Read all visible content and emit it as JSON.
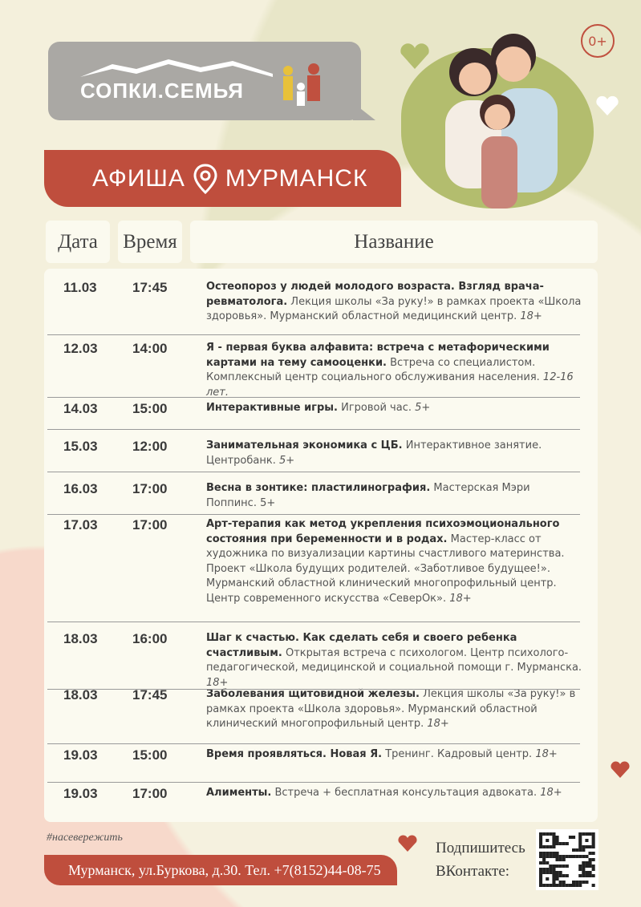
{
  "logo": {
    "text": "СОПКИ.СЕМЬЯ"
  },
  "banner": {
    "left": "АФИША",
    "right": "МУРМАНСК",
    "icon": "location-pin-icon"
  },
  "age_rating": "0+",
  "colors": {
    "accent": "#bf4e3d",
    "logo_bg": "#aaa8a4",
    "green": "#b3bd6e"
  },
  "table": {
    "headers": [
      "Дата",
      "Время",
      "Название"
    ],
    "rows": [
      {
        "date": "11.03",
        "time": "17:45",
        "title": "Остеопороз у людей молодого возраста. Взгляд врача-ревматолога.",
        "desc": " Лекция школы «За руку!» в рамках проекта «Школа здоровья». Мурманский областной медицинский центр. ",
        "age": "18+"
      },
      {
        "date": "12.03",
        "time": "14:00",
        "title": "Я - первая буква алфавита: встреча с метафорическими картами на тему самооценки.",
        "desc": " Встреча со специалистом. Комплексный центр социального обслуживания населения. ",
        "age": "12-16 лет."
      },
      {
        "date": "14.03",
        "time": "15:00",
        "title": "Интерактивные игры.",
        "desc": " Игровой час. ",
        "age": "5+"
      },
      {
        "date": "15.03",
        "time": "12:00",
        "title": "Занимательная экономика с ЦБ.",
        "desc": " Интерактивное занятие. Центробанк. ",
        "age": "5+"
      },
      {
        "date": "16.03",
        "time": "17:00",
        "title": "Весна в зонтике: пластилинография.",
        "desc": " Мастерская Мэри Поппинс. 5+",
        "age": ""
      },
      {
        "date": "17.03",
        "time": "17:00",
        "title": "Арт-терапия как метод укрепления психоэмоционального состояния при беременности и в родах.",
        "desc": " Мастер-класс от художника по визуализации картины счастливого материнства. Проект «Школа будущих родителей. «Заботливое будущее!». Мурманский областной клинический многопрофильный центр. Центр современного искусства «СеверОк». ",
        "age": "18+"
      },
      {
        "date": "18.03",
        "time": "16:00",
        "title": "Шаг к счастью. Как сделать себя и своего ребенка счастливым.",
        "desc": " Открытая встреча с психологом. Центр психолого-педагогической, медицинской и социальной помощи г. Мурманска. ",
        "age": "18+"
      },
      {
        "date": "18.03",
        "time": "17:45",
        "title": "Заболевания щитовидной железы.",
        "desc": " Лекция школы «За руку!» в рамках проекта «Школа здоровья». Мурманский областной клинический многопрофильный центр. ",
        "age": "18+"
      },
      {
        "date": "19.03",
        "time": "15:00",
        "title": "Время проявляться. Новая Я.",
        "desc": " Тренинг. Кадровый центр. ",
        "age": "18+"
      },
      {
        "date": "19.03",
        "time": "17:00",
        "title": "Алименты.",
        "desc": " Встреча + бесплатная консультация адвоката. ",
        "age": "18+"
      }
    ]
  },
  "footer": {
    "hashtag": "#насевережить",
    "address": "Мурманск, ул.Буркова, д.30. Тел. +7(8152)44-08-75",
    "subscribe_line1": "Подпишитесь",
    "subscribe_line2": "ВКонтакте:",
    "qr_icon": "qr-code-icon"
  }
}
